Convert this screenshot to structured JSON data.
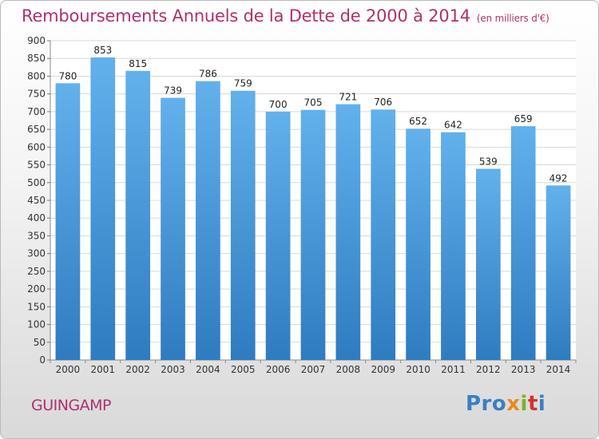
{
  "title": "Remboursements Annuels de la Dette de 2000 à 2014",
  "unit_note": "(en milliers d'€)",
  "city": "GUINGAMP",
  "logo": {
    "text": "Proxiti",
    "colors": [
      "#3a7fc4",
      "#e58b1f",
      "#7ab22e",
      "#d1322f",
      "#3a7fc4"
    ]
  },
  "colors": {
    "bar_top": "#62b1ec",
    "bar_bottom": "#2f7bc0",
    "title": "#b0306f",
    "grid": "#d8d8d8",
    "plot_bg": "#ffffff"
  },
  "chart_data": {
    "type": "bar",
    "title": "Remboursements Annuels de la Dette de 2000 à 2014",
    "xlabel": "",
    "ylabel": "",
    "ylim": [
      0,
      900
    ],
    "ytick_step": 50,
    "grid": true,
    "categories": [
      "2000",
      "2001",
      "2002",
      "2003",
      "2004",
      "2005",
      "2006",
      "2007",
      "2008",
      "2009",
      "2010",
      "2011",
      "2012",
      "2013",
      "2014"
    ],
    "values": [
      780,
      853,
      815,
      739,
      786,
      759,
      700,
      705,
      721,
      706,
      652,
      642,
      539,
      659,
      492
    ]
  }
}
